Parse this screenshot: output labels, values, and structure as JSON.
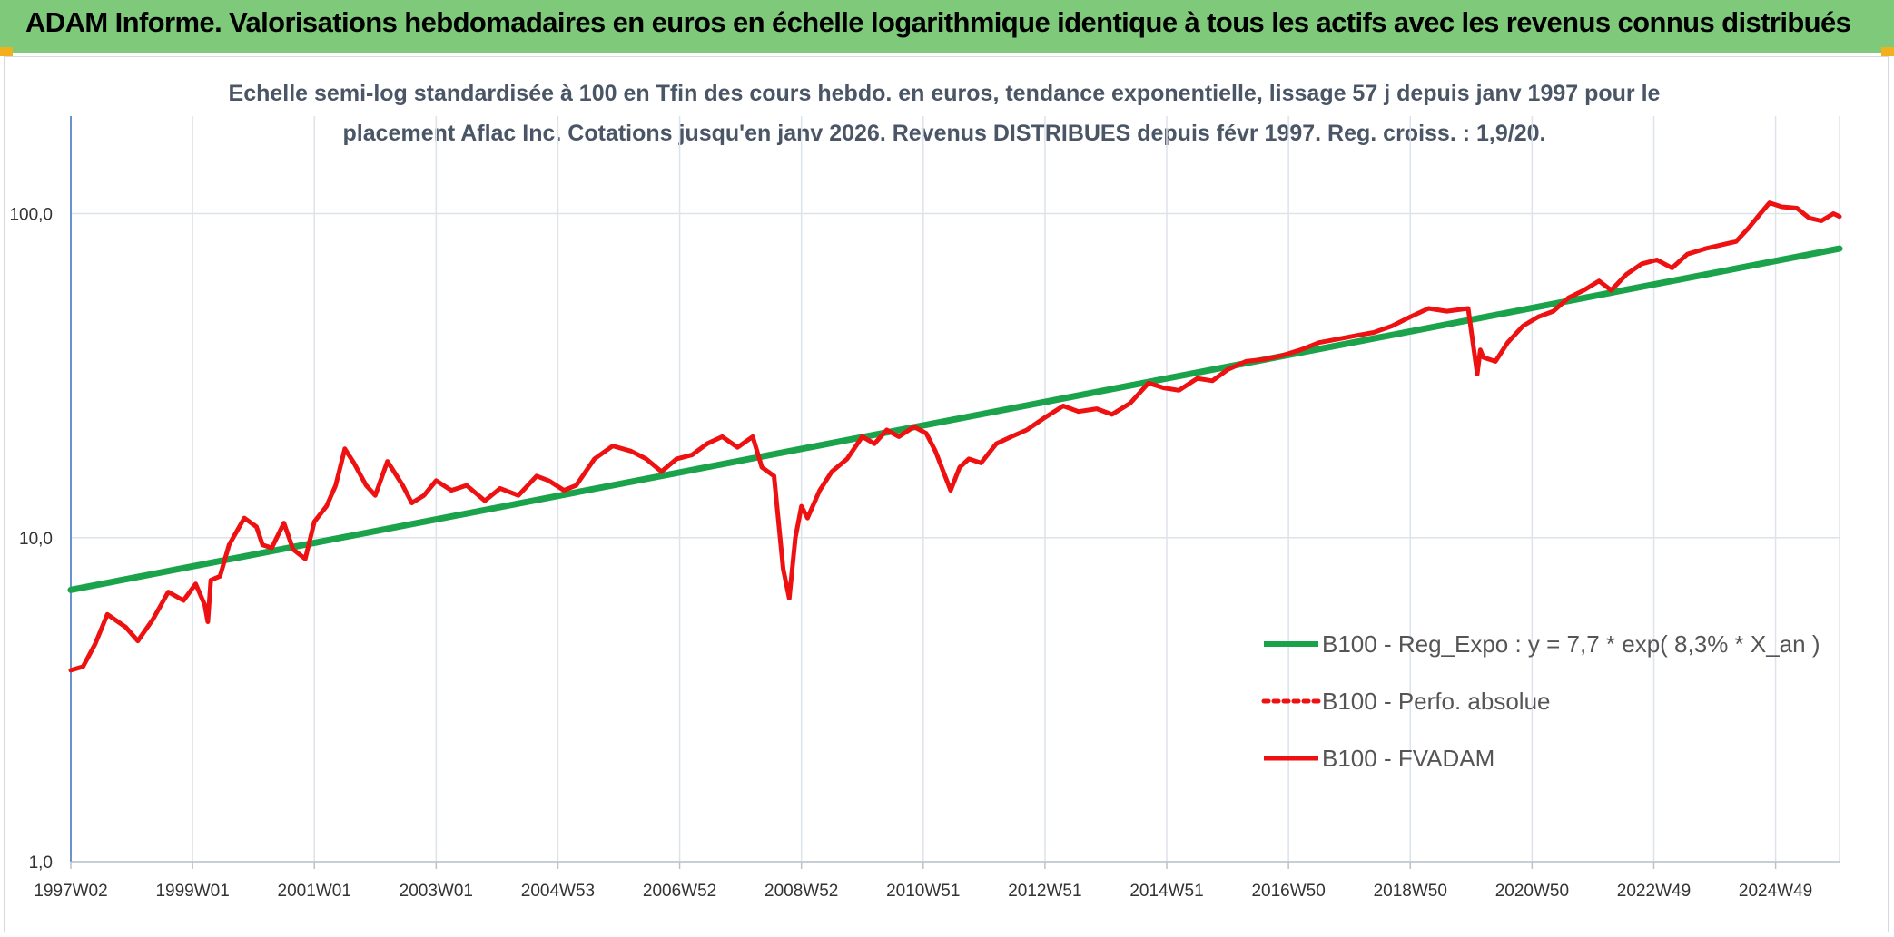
{
  "header": {
    "title": "ADAM Informe. Valorisations hebdomadaires en euros en échelle logarithmique identique à tous les actifs avec les revenus connus distribués"
  },
  "chart_data": {
    "type": "line",
    "title_line1": "Echelle semi-log standardisée à 100 en Tfin des cours hebdo. en euros, tendance exponentielle, lissage 57 j depuis janv 1997 pour le",
    "title_line2": "placement Aflac Inc. Cotations jusqu'en janv 2026. Revenus DISTRIBUES depuis févr 1997. Reg. croiss. : 1,9/20.",
    "y_scale": "log",
    "ylim": [
      1,
      200
    ],
    "y_ticks": [
      {
        "value": 1,
        "label": "1,0"
      },
      {
        "value": 10,
        "label": "10,0"
      },
      {
        "value": 100,
        "label": "100,0"
      }
    ],
    "xlim": [
      1997.0,
      2026.05
    ],
    "x_ticks": [
      {
        "value": 1997.0,
        "label": "1997W02"
      },
      {
        "value": 1999.0,
        "label": "1999W01"
      },
      {
        "value": 2001.0,
        "label": "2001W01"
      },
      {
        "value": 2003.0,
        "label": "2003W01"
      },
      {
        "value": 2005.0,
        "label": "2004W53"
      },
      {
        "value": 2007.0,
        "label": "2006W52"
      },
      {
        "value": 2009.0,
        "label": "2008W52"
      },
      {
        "value": 2011.0,
        "label": "2010W51"
      },
      {
        "value": 2013.0,
        "label": "2012W51"
      },
      {
        "value": 2015.0,
        "label": "2014W51"
      },
      {
        "value": 2017.0,
        "label": "2016W50"
      },
      {
        "value": 2019.0,
        "label": "2018W50"
      },
      {
        "value": 2021.0,
        "label": "2020W50"
      },
      {
        "value": 2023.0,
        "label": "2022W49"
      },
      {
        "value": 2025.0,
        "label": "2024W49"
      }
    ],
    "grid": "vertical-and-horizontal",
    "legend_position": "bottom-right",
    "series": [
      {
        "name": "B100 - Reg_Expo : y = 7,7 * exp( 8,3% *  X_an )",
        "color": "#1aa34a",
        "style": "solid",
        "x": [
          1997.0,
          2026.05
        ],
        "y": [
          6.9,
          78.0
        ]
      },
      {
        "name": "B100 - Perfo. absolue",
        "color": "#ee1111",
        "style": "dotted",
        "x": [],
        "y": []
      },
      {
        "name": "B100 - FVADAM",
        "color": "#ee1111",
        "style": "solid",
        "x": [
          1997.0,
          1997.2,
          1997.4,
          1997.6,
          1997.9,
          1998.1,
          1998.35,
          1998.6,
          1998.85,
          1999.05,
          1999.2,
          1999.25,
          1999.3,
          1999.45,
          1999.6,
          1999.85,
          2000.05,
          2000.15,
          2000.3,
          2000.5,
          2000.65,
          2000.85,
          2001.0,
          2001.2,
          2001.35,
          2001.5,
          2001.65,
          2001.85,
          2002.0,
          2002.2,
          2002.45,
          2002.6,
          2002.8,
          2003.0,
          2003.25,
          2003.5,
          2003.8,
          2004.05,
          2004.35,
          2004.65,
          2004.85,
          2005.1,
          2005.3,
          2005.6,
          2005.9,
          2006.2,
          2006.45,
          2006.7,
          2006.95,
          2007.2,
          2007.45,
          2007.7,
          2007.95,
          2008.2,
          2008.35,
          2008.55,
          2008.7,
          2008.8,
          2008.9,
          2009.0,
          2009.1,
          2009.3,
          2009.5,
          2009.75,
          2010.0,
          2010.2,
          2010.4,
          2010.6,
          2010.85,
          2011.05,
          2011.2,
          2011.45,
          2011.6,
          2011.75,
          2011.95,
          2012.2,
          2012.45,
          2012.7,
          2013.0,
          2013.3,
          2013.55,
          2013.85,
          2014.1,
          2014.4,
          2014.7,
          2014.95,
          2015.2,
          2015.5,
          2015.75,
          2016.0,
          2016.3,
          2016.6,
          2016.9,
          2017.2,
          2017.5,
          2017.8,
          2018.1,
          2018.4,
          2018.7,
          2019.0,
          2019.3,
          2019.6,
          2019.95,
          2020.1,
          2020.15,
          2020.2,
          2020.4,
          2020.6,
          2020.85,
          2021.1,
          2021.35,
          2021.6,
          2021.85,
          2022.1,
          2022.3,
          2022.55,
          2022.8,
          2023.05,
          2023.3,
          2023.55,
          2023.85,
          2024.1,
          2024.35,
          2024.55,
          2024.75,
          2024.9,
          2025.1,
          2025.35,
          2025.55,
          2025.75,
          2025.95,
          2026.05
        ],
        "y": [
          3.9,
          4.0,
          4.7,
          5.8,
          5.3,
          4.8,
          5.6,
          6.8,
          6.4,
          7.2,
          6.2,
          5.5,
          7.4,
          7.6,
          9.5,
          11.5,
          10.8,
          9.5,
          9.3,
          11.1,
          9.2,
          8.6,
          11.2,
          12.5,
          14.5,
          18.8,
          17.0,
          14.5,
          13.5,
          17.2,
          14.5,
          12.8,
          13.5,
          15.0,
          14.0,
          14.5,
          13.0,
          14.2,
          13.5,
          15.5,
          15.0,
          14.0,
          14.5,
          17.5,
          19.2,
          18.5,
          17.5,
          16.0,
          17.5,
          18.0,
          19.5,
          20.5,
          19.0,
          20.5,
          16.5,
          15.5,
          8.0,
          6.5,
          10.0,
          12.5,
          11.5,
          14.0,
          16.0,
          17.5,
          20.5,
          19.5,
          21.5,
          20.5,
          22.0,
          21.0,
          18.5,
          14.0,
          16.5,
          17.5,
          17.0,
          19.5,
          20.5,
          21.5,
          23.5,
          25.5,
          24.5,
          25.0,
          24.0,
          26.0,
          30.0,
          29.0,
          28.5,
          31.0,
          30.5,
          33.0,
          35.0,
          35.5,
          36.5,
          38.0,
          40.0,
          41.0,
          42.0,
          43.0,
          45.0,
          48.0,
          51.0,
          50.0,
          51.0,
          32.0,
          38.0,
          36.0,
          35.0,
          40.0,
          45.0,
          48.0,
          50.0,
          55.0,
          58.0,
          62.0,
          58.0,
          65.0,
          70.0,
          72.0,
          68.0,
          75.0,
          78.0,
          80.0,
          82.0,
          90.0,
          100.0,
          108.0,
          105.0,
          104.0,
          97.0,
          95.0,
          100.0,
          98.0
        ]
      }
    ]
  }
}
